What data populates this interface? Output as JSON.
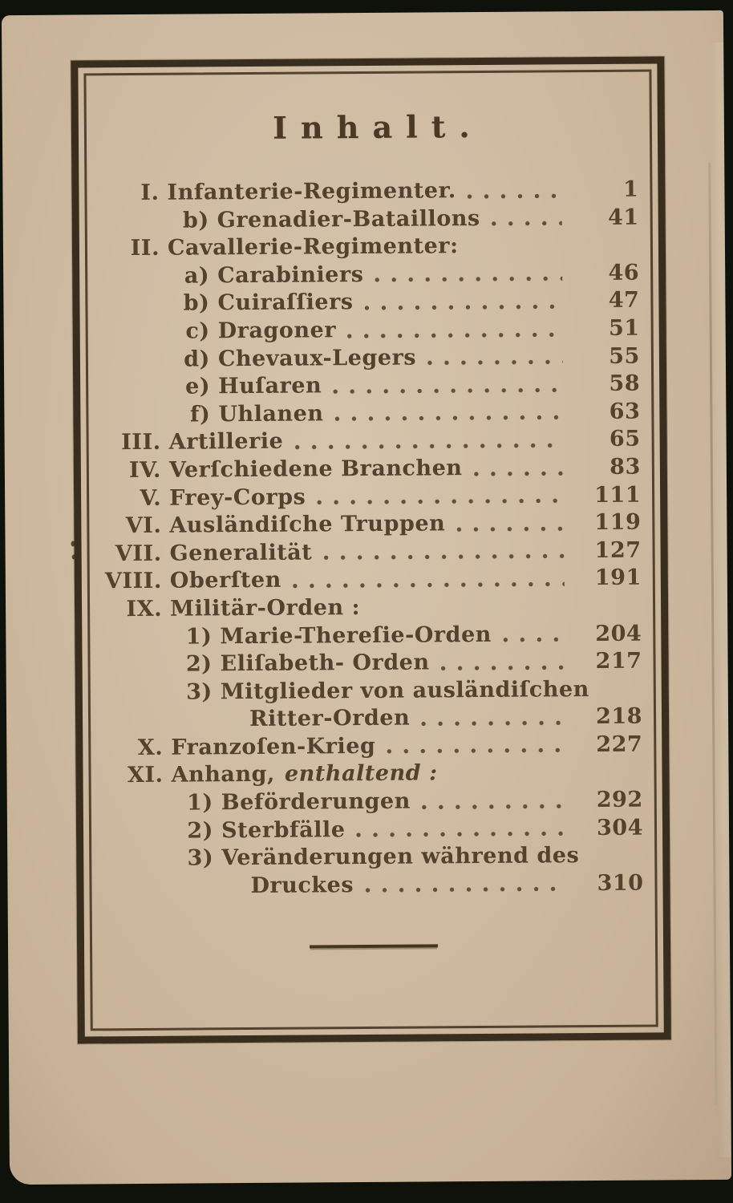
{
  "document": {
    "kind": "scanned book page — table of contents",
    "title": "Inhalt."
  },
  "colors": {
    "paper": "#cfbca3",
    "ink": "#55422d",
    "frame": "#392d1e",
    "background": "#0e120b"
  },
  "toc": [
    {
      "marker": "I.",
      "label": "Infanterie-Regimenter.",
      "page": "1",
      "level": "l0"
    },
    {
      "marker": "b)",
      "label": "Grenadier-Bataillons",
      "page": "41",
      "level": "l1"
    },
    {
      "marker": "II.",
      "label": "Cavallerie-Regimenter:",
      "page": "",
      "level": "l0"
    },
    {
      "marker": "a)",
      "label": "Carabiniers",
      "page": "46",
      "level": "l1"
    },
    {
      "marker": "b)",
      "label": "Cuiraſſiers",
      "page": "47",
      "level": "l1"
    },
    {
      "marker": "c)",
      "label": "Dragoner",
      "page": "51",
      "level": "l1"
    },
    {
      "marker": "d)",
      "label": "Chevaux-Legers",
      "page": "55",
      "level": "l1"
    },
    {
      "marker": "e)",
      "label": "Huſaren",
      "page": "58",
      "level": "l1"
    },
    {
      "marker": "f)",
      "label": "Uhlanen",
      "page": "63",
      "level": "l1"
    },
    {
      "marker": "III.",
      "label": "Artillerie",
      "page": "65",
      "level": "l0"
    },
    {
      "marker": "IV.",
      "label": "Verſchiedene Branchen",
      "page": "83",
      "level": "l0"
    },
    {
      "marker": "V.",
      "label": "Frey-Corps",
      "page": "111",
      "level": "l0"
    },
    {
      "marker": "VI.",
      "label": "Ausländiſche Truppen",
      "page": "119",
      "level": "l0"
    },
    {
      "marker": "VII.",
      "label": "Generalität",
      "page": "127",
      "level": "l0"
    },
    {
      "marker": "VIII.",
      "label": "Oberſten",
      "page": "191",
      "level": "l0"
    },
    {
      "marker": "IX.",
      "label": "Militär-Orden :",
      "page": "",
      "level": "l0"
    },
    {
      "marker": "1)",
      "label": "Marie-Thereſie-Orden",
      "page": "204",
      "level": "l1"
    },
    {
      "marker": "2)",
      "label": "Eliſabeth- Orden",
      "page": "217",
      "level": "l1"
    },
    {
      "marker": "3)",
      "label": "Mitglieder von ausländiſchen",
      "page": "",
      "level": "l1"
    },
    {
      "marker": "",
      "label": "Ritter-Orden",
      "page": "218",
      "level": "cont"
    },
    {
      "marker": "X.",
      "label": "Franzoſen-Krieg",
      "page": "227",
      "level": "l0"
    },
    {
      "marker": "XI.",
      "label": "Anhang,",
      "label_italic": "enthaltend :",
      "page": "",
      "level": "l0"
    },
    {
      "marker": "1)",
      "label": "Beförderungen",
      "page": "292",
      "level": "l1"
    },
    {
      "marker": "2)",
      "label": "Sterbfälle",
      "page": "304",
      "level": "l1"
    },
    {
      "marker": "3)",
      "label": "Veränderungen während des",
      "page": "",
      "level": "l1"
    },
    {
      "marker": "",
      "label": "Druckes",
      "page": "310",
      "level": "cont"
    }
  ]
}
